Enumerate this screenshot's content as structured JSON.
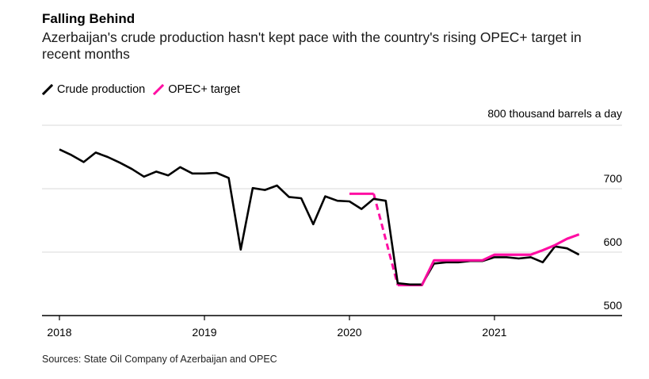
{
  "header": {
    "title": "Falling Behind",
    "subtitle": "Azerbaijan's crude production hasn't kept pace with the country's rising OPEC+ target in recent months"
  },
  "legend": {
    "items": [
      {
        "label": "Crude production",
        "color": "#000000"
      },
      {
        "label": "OPEC+ target",
        "color": "#ff0fa3"
      }
    ]
  },
  "source": "Sources: State Oil Company of Azerbaijan and OPEC",
  "chart_data": {
    "type": "line",
    "title": "Falling Behind",
    "ylabel": "",
    "y_unit_label": "800 thousand barrels a day",
    "ylim": [
      500,
      800
    ],
    "yticks": [
      500,
      600,
      700,
      800
    ],
    "ytick_labels": [
      "500",
      "600",
      "700",
      ""
    ],
    "xlim": [
      2018.0,
      2021.75
    ],
    "xticks": [
      2018,
      2019,
      2020,
      2021
    ],
    "xtick_labels": [
      "2018",
      "2019",
      "2020",
      "2021"
    ],
    "grid": true,
    "legend_position": "top-left",
    "series": [
      {
        "name": "Crude production",
        "color": "#000000",
        "dashed_segments": [],
        "x": [
          2018.0,
          2018.083,
          2018.167,
          2018.25,
          2018.333,
          2018.417,
          2018.5,
          2018.583,
          2018.667,
          2018.75,
          2018.833,
          2018.917,
          2019.0,
          2019.083,
          2019.167,
          2019.25,
          2019.333,
          2019.417,
          2019.5,
          2019.583,
          2019.667,
          2019.75,
          2019.833,
          2019.917,
          2020.0,
          2020.083,
          2020.167,
          2020.25,
          2020.333,
          2020.417,
          2020.5,
          2020.583,
          2020.667,
          2020.75,
          2020.833,
          2020.917,
          2021.0,
          2021.083,
          2021.167,
          2021.25,
          2021.333,
          2021.417,
          2021.5,
          2021.583
        ],
        "y": [
          762,
          753,
          742,
          757,
          750,
          741,
          731,
          719,
          727,
          721,
          734,
          724,
          724,
          725,
          717,
          604,
          701,
          698,
          705,
          687,
          685,
          644,
          688,
          681,
          680,
          668,
          684,
          681,
          551,
          549,
          549,
          582,
          584,
          584,
          586,
          586,
          592,
          592,
          590,
          592,
          584,
          609,
          606,
          596
        ]
      },
      {
        "name": "OPEC+ target",
        "color": "#ff0fa3",
        "dashed_from_x": 2020.167,
        "dashed_to_x": 2020.333,
        "x": [
          2020.0,
          2020.083,
          2020.167,
          2020.333,
          2020.417,
          2020.5,
          2020.583,
          2020.667,
          2020.75,
          2020.833,
          2020.917,
          2021.0,
          2021.083,
          2021.167,
          2021.25,
          2021.333,
          2021.417,
          2021.5,
          2021.583
        ],
        "y": [
          692,
          692,
          692,
          548,
          548,
          548,
          587,
          587,
          587,
          587,
          587,
          596,
          596,
          596,
          596,
          603,
          611,
          621,
          628
        ]
      }
    ]
  }
}
